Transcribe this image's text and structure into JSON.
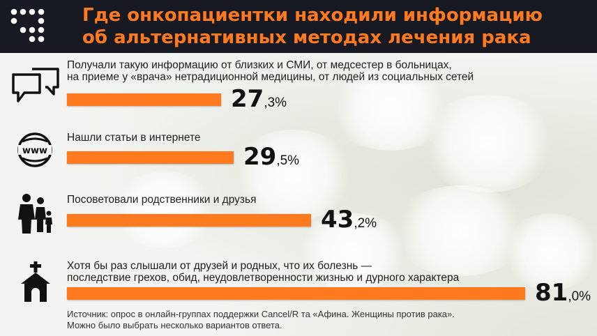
{
  "header": {
    "title_line1": "Где онкопациентки находили информацию",
    "title_line2": "об альтернативных методах лечения рака",
    "title_color": "#ff7a1f",
    "logo_icon": "dot-grid-logo-icon"
  },
  "items": [
    {
      "icon": "speech-bubbles-icon",
      "label_line1": "Получали такую информацию от близких и СМИ, от медсестер в больницах,",
      "label_line2": "на приеме у «врача» нетрадиционной медицины, от людей из социальных сетей",
      "value_int": "27",
      "value_frac": ",3%",
      "value": 27.3
    },
    {
      "icon": "www-globe-icon",
      "label_line1": "Нашли статьи в интернете",
      "label_line2": "",
      "value_int": "29",
      "value_frac": ",5%",
      "value": 29.5
    },
    {
      "icon": "family-icon",
      "label_line1": "Посоветовали родственники и друзья",
      "label_line2": "",
      "value_int": "43",
      "value_frac": ",2%",
      "value": 43.2
    },
    {
      "icon": "church-icon",
      "label_line1": "Хотя бы раз слышали от друзей и родных, что их болезнь —",
      "label_line2": "последствие грехов, обид, неудовлетворенности жизнью и дурного характера",
      "value_int": "81",
      "value_frac": ",0%",
      "value": 81.0
    }
  ],
  "source": {
    "line1": "Источник: опрос в онлайн-группах поддержки Cancel/R та «Афина. Женщины против рака».",
    "line2": "Можно было выбрать несколько вариантов ответа."
  },
  "chart_data": {
    "type": "bar",
    "orientation": "horizontal",
    "title": "Где онкопациентки находили информацию об альтернативных методах лечения рака",
    "categories": [
      "Получали такую информацию от близких и СМИ, от медсестер в больницах, на приеме у «врача» нетрадиционной медицины, от людей из социальных сетей",
      "Нашли статьи в интернете",
      "Посоветовали родственники и друзья",
      "Хотя бы раз слышали от друзей и родных, что их болезнь — последствие грехов, обид, неудовлетворенности жизнью и дурного характера"
    ],
    "values": [
      27.3,
      29.5,
      43.2,
      81.0
    ],
    "unit": "%",
    "bar_color": "#ff7a1f",
    "grid": false,
    "legend": "none"
  }
}
